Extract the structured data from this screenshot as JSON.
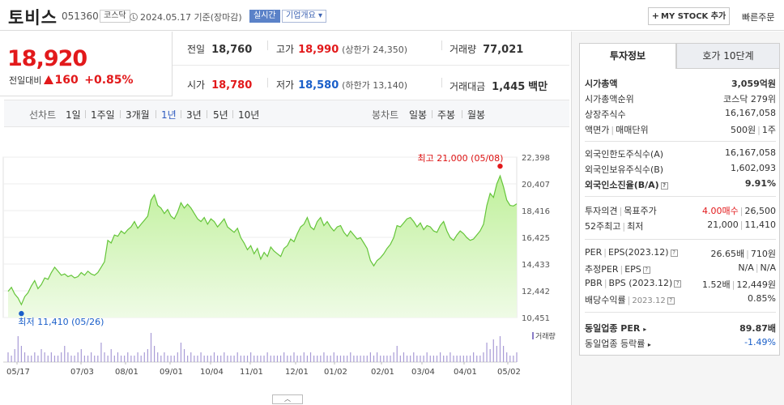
{
  "header": {
    "name": "토비스",
    "code": "051360",
    "market": "코스닥",
    "date": "2024.05.17",
    "basis": "기준(장마감)",
    "realtime": "실시간",
    "overview": "기업개요",
    "mystock": "MY STOCK 추가",
    "quick_order": "빠른주문"
  },
  "price": {
    "current": "18,920",
    "change_label": "전일대비",
    "change": "160",
    "change_pct": "+0.85%"
  },
  "summary": {
    "prev_label": "전일",
    "prev": "18,760",
    "high_label": "고가",
    "high": "18,990",
    "upper_limit": "(상한가 24,350)",
    "volume_label": "거래량",
    "volume": "77,021",
    "open_label": "시가",
    "open": "18,780",
    "low_label": "저가",
    "low": "18,580",
    "lower_limit": "(하한가 13,140)",
    "amount_label": "거래대금",
    "amount": "1,445",
    "amount_unit": "백만"
  },
  "periods": {
    "line_title": "선차트",
    "line_items": [
      "1일",
      "1주일",
      "3개월",
      "1년",
      "3년",
      "5년",
      "10년"
    ],
    "active_index": 3,
    "candle_title": "봉차트",
    "candle_items": [
      "일봉",
      "주봉",
      "월봉"
    ]
  },
  "tabs": {
    "invest": "투자정보",
    "quote": "호가 10단계"
  },
  "invest_info": {
    "market_cap_label": "시가총액",
    "market_cap": "3,059억원",
    "rank_label": "시가총액순위",
    "rank": "코스닥 279위",
    "shares_label": "상장주식수",
    "shares": "16,167,058",
    "par_label": "액면가",
    "trade_unit_label": "매매단위",
    "par": "500원",
    "trade_unit": "1주",
    "foreign_limit_label": "외국인한도주식수(A)",
    "foreign_limit": "16,167,058",
    "foreign_hold_label": "외국인보유주식수(B)",
    "foreign_hold": "1,602,093",
    "foreign_ratio_label": "외국인소진율(B/A)",
    "foreign_ratio": "9.91%",
    "opinion_label": "투자의견",
    "target_label": "목표주가",
    "opinion": "4.00매수",
    "target": "26,500",
    "w52_high_label": "52주최고",
    "w52_low_label": "최저",
    "w52_high": "21,000",
    "w52_low": "11,410",
    "per_label": "PER",
    "eps_label": "EPS(2023.12)",
    "per": "26.65배",
    "eps": "710원",
    "est_per_label": "추정PER",
    "est_eps_label": "EPS",
    "est_per": "N/A",
    "est_eps": "N/A",
    "pbr_label": "PBR",
    "bps_label": "BPS (2023.12)",
    "pbr": "1.52배",
    "bps": "12,449원",
    "div_label": "배당수익률",
    "div_period": "2023.12",
    "div": "0.85%",
    "sector_per_label": "동일업종 PER",
    "sector_per": "89.87배",
    "sector_chg_label": "동일업종 등락률",
    "sector_chg": "-1.49%"
  },
  "chart_data": {
    "type": "area",
    "y_ticks": [
      "22,398",
      "20,407",
      "18,416",
      "16,425",
      "14,433",
      "12,442",
      "10,451"
    ],
    "ylim": [
      10451,
      22398
    ],
    "x_ticks": [
      "05/17",
      "07/03",
      "08/01",
      "09/01",
      "10/04",
      "11/01",
      "12/01",
      "01/02",
      "02/01",
      "03/04",
      "04/01",
      "05/02"
    ],
    "high_label": "최고 21,000 (05/08)",
    "low_label": "최저 11,410 (05/26)",
    "volume_label": "거래량",
    "values": [
      12400,
      12700,
      12200,
      11900,
      11410,
      12000,
      12300,
      12800,
      13200,
      12600,
      12900,
      13400,
      13300,
      13800,
      14200,
      13900,
      13600,
      13700,
      13500,
      13600,
      13400,
      13500,
      13800,
      13600,
      13900,
      13700,
      13600,
      13800,
      14200,
      14600,
      16200,
      16000,
      16600,
      16500,
      16900,
      16700,
      17000,
      17200,
      17600,
      17100,
      17400,
      17700,
      18000,
      19200,
      19600,
      18800,
      18600,
      18200,
      18500,
      18000,
      17800,
      18300,
      19000,
      18600,
      18900,
      18600,
      18200,
      17800,
      17600,
      17900,
      17400,
      17800,
      17600,
      17200,
      17500,
      17800,
      17200,
      17000,
      16800,
      17100,
      16400,
      16000,
      15500,
      15800,
      15200,
      15600,
      14800,
      15300,
      15000,
      15700,
      15400,
      15200,
      15000,
      15600,
      15800,
      16300,
      16100,
      16700,
      17200,
      17400,
      17900,
      17200,
      17000,
      17600,
      17900,
      17300,
      17600,
      17200,
      16900,
      17200,
      17300,
      16800,
      16500,
      16900,
      16600,
      16300,
      16400,
      16000,
      15600,
      14700,
      14300,
      14700,
      14900,
      15200,
      15600,
      15900,
      16400,
      17300,
      17200,
      17500,
      17800,
      17900,
      17600,
      17200,
      17500,
      17000,
      17300,
      17200,
      16900,
      16800,
      17300,
      17600,
      16900,
      16400,
      16200,
      16600,
      16900,
      16700,
      16400,
      16200,
      16300,
      16600,
      16900,
      17400,
      18800,
      19700,
      19400,
      20400,
      21000,
      20200,
      19200,
      18800,
      18760,
      18920
    ],
    "volume": [
      3,
      2,
      4,
      8,
      5,
      3,
      2,
      2,
      3,
      2,
      4,
      3,
      2,
      3,
      2,
      2,
      3,
      5,
      3,
      2,
      2,
      3,
      4,
      2,
      2,
      3,
      2,
      2,
      6,
      3,
      2,
      4,
      2,
      3,
      2,
      2,
      3,
      2,
      2,
      3,
      2,
      3,
      4,
      9,
      5,
      3,
      2,
      3,
      2,
      2,
      2,
      3,
      6,
      4,
      2,
      3,
      2,
      2,
      3,
      2,
      2,
      2,
      3,
      2,
      2,
      3,
      2,
      2,
      2,
      3,
      2,
      2,
      2,
      3,
      2,
      2,
      2,
      2,
      3,
      2,
      2,
      2,
      2,
      3,
      2,
      2,
      3,
      2,
      2,
      3,
      2,
      3,
      2,
      2,
      2,
      3,
      2,
      2,
      3,
      2,
      2,
      2,
      2,
      3,
      2,
      2,
      2,
      2,
      2,
      3,
      2,
      3,
      2,
      2,
      2,
      2,
      3,
      5,
      2,
      3,
      2,
      2,
      3,
      2,
      2,
      2,
      3,
      2,
      2,
      2,
      3,
      2,
      2,
      3,
      2,
      2,
      2,
      2,
      2,
      2,
      3,
      2,
      2,
      3,
      6,
      4,
      7,
      5,
      8,
      5,
      3,
      2,
      2,
      3
    ]
  }
}
